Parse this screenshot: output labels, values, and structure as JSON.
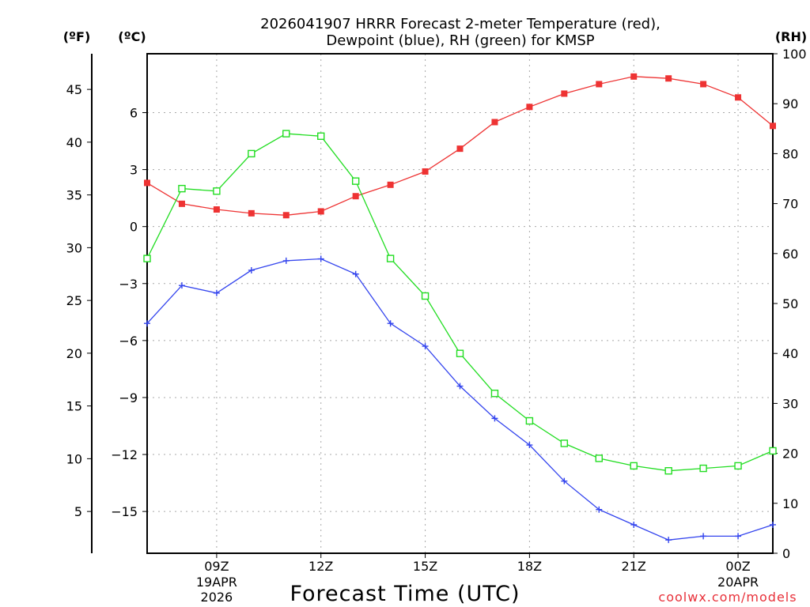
{
  "chart_data": {
    "type": "line",
    "title_line1": "2026041907 HRRR Forecast 2-meter Temperature (red),",
    "title_line2": "Dewpoint (blue), RH (green) for KMSP",
    "xlabel": "Forecast Time (UTC)",
    "credit": "coolwx.com/models",
    "units": {
      "fahrenheit": "(ºF)",
      "celsius": "(ºC)",
      "rh": "(RH)"
    },
    "x_hours": [
      7,
      8,
      9,
      10,
      11,
      12,
      13,
      14,
      15,
      16,
      17,
      18,
      19,
      20,
      21,
      22,
      23,
      24,
      25
    ],
    "xlim": [
      7,
      25
    ],
    "x_ticks": [
      {
        "hour": 9,
        "label": "09Z",
        "sub1": "19APR",
        "sub2": "2026"
      },
      {
        "hour": 12,
        "label": "12Z"
      },
      {
        "hour": 15,
        "label": "15Z"
      },
      {
        "hour": 18,
        "label": "18Z"
      },
      {
        "hour": 21,
        "label": "21Z"
      },
      {
        "hour": 24,
        "label": "00Z",
        "sub1": "20APR"
      }
    ],
    "celsius_axis": {
      "ylim": [
        -17.2,
        9.1
      ],
      "ticks": [
        6,
        3,
        0,
        -3,
        -6,
        -9,
        -12,
        -15
      ],
      "tick_labels": [
        "6",
        "3",
        "0",
        "−3",
        "−6",
        "−9",
        "−12",
        "−15"
      ]
    },
    "fahrenheit_axis": {
      "ticks": [
        45,
        40,
        35,
        30,
        25,
        20,
        15,
        10,
        5
      ],
      "tick_labels": [
        "45",
        "40",
        "35",
        "30",
        "25",
        "20",
        "15",
        "10",
        "5"
      ]
    },
    "rh_axis": {
      "ylim": [
        0,
        100
      ],
      "ticks": [
        100,
        90,
        80,
        70,
        60,
        50,
        40,
        30,
        20,
        10,
        0
      ],
      "tick_labels": [
        "100",
        "90",
        "80",
        "70",
        "60",
        "50",
        "40",
        "30",
        "20",
        "10",
        "0"
      ]
    },
    "series": [
      {
        "name": "2-meter Temperature",
        "axis": "celsius",
        "color": "#ee3333",
        "marker": "filled-square",
        "values": [
          2.3,
          1.2,
          0.9,
          0.7,
          0.6,
          0.8,
          1.6,
          2.2,
          2.9,
          4.1,
          5.5,
          6.3,
          7.0,
          7.5,
          7.9,
          7.8,
          7.5,
          6.8,
          5.3
        ]
      },
      {
        "name": "Dewpoint",
        "axis": "celsius",
        "color": "#3344ee",
        "marker": "plus",
        "values": [
          -5.1,
          -3.1,
          -3.5,
          -2.3,
          -1.8,
          -1.7,
          -2.5,
          -5.1,
          -6.3,
          -8.4,
          -10.1,
          -11.5,
          -13.4,
          -14.9,
          -15.7,
          -16.5,
          -16.3,
          -16.3,
          -15.7
        ]
      },
      {
        "name": "RH",
        "axis": "rh",
        "color": "#22dd22",
        "marker": "open-square",
        "values": [
          59,
          73,
          72.5,
          80,
          84,
          83.5,
          74.5,
          59,
          51.5,
          40,
          32,
          26.5,
          22,
          19,
          17.5,
          16.5,
          17,
          17.5,
          20.5
        ]
      }
    ]
  }
}
